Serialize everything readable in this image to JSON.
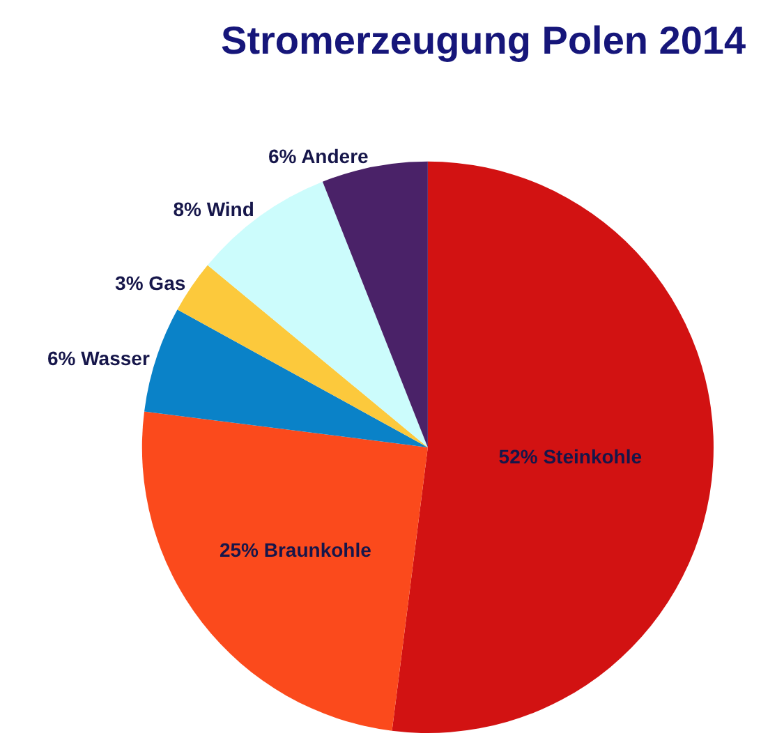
{
  "chart_data": {
    "type": "pie",
    "title": "Stromerzeugung Polen 2014",
    "categories": [
      "Steinkohle",
      "Braunkohle",
      "Wasser",
      "Gas",
      "Wind",
      "Andere"
    ],
    "values": [
      52,
      25,
      6,
      3,
      8,
      6
    ],
    "value_labels": [
      "52%",
      "25%",
      "6%",
      "3%",
      "8%",
      "6%"
    ],
    "colors": [
      "#d21212",
      "#fb4a1c",
      "#0a82c8",
      "#fcc93c",
      "#ccfcfc",
      "#4a2268"
    ],
    "legend": false
  }
}
